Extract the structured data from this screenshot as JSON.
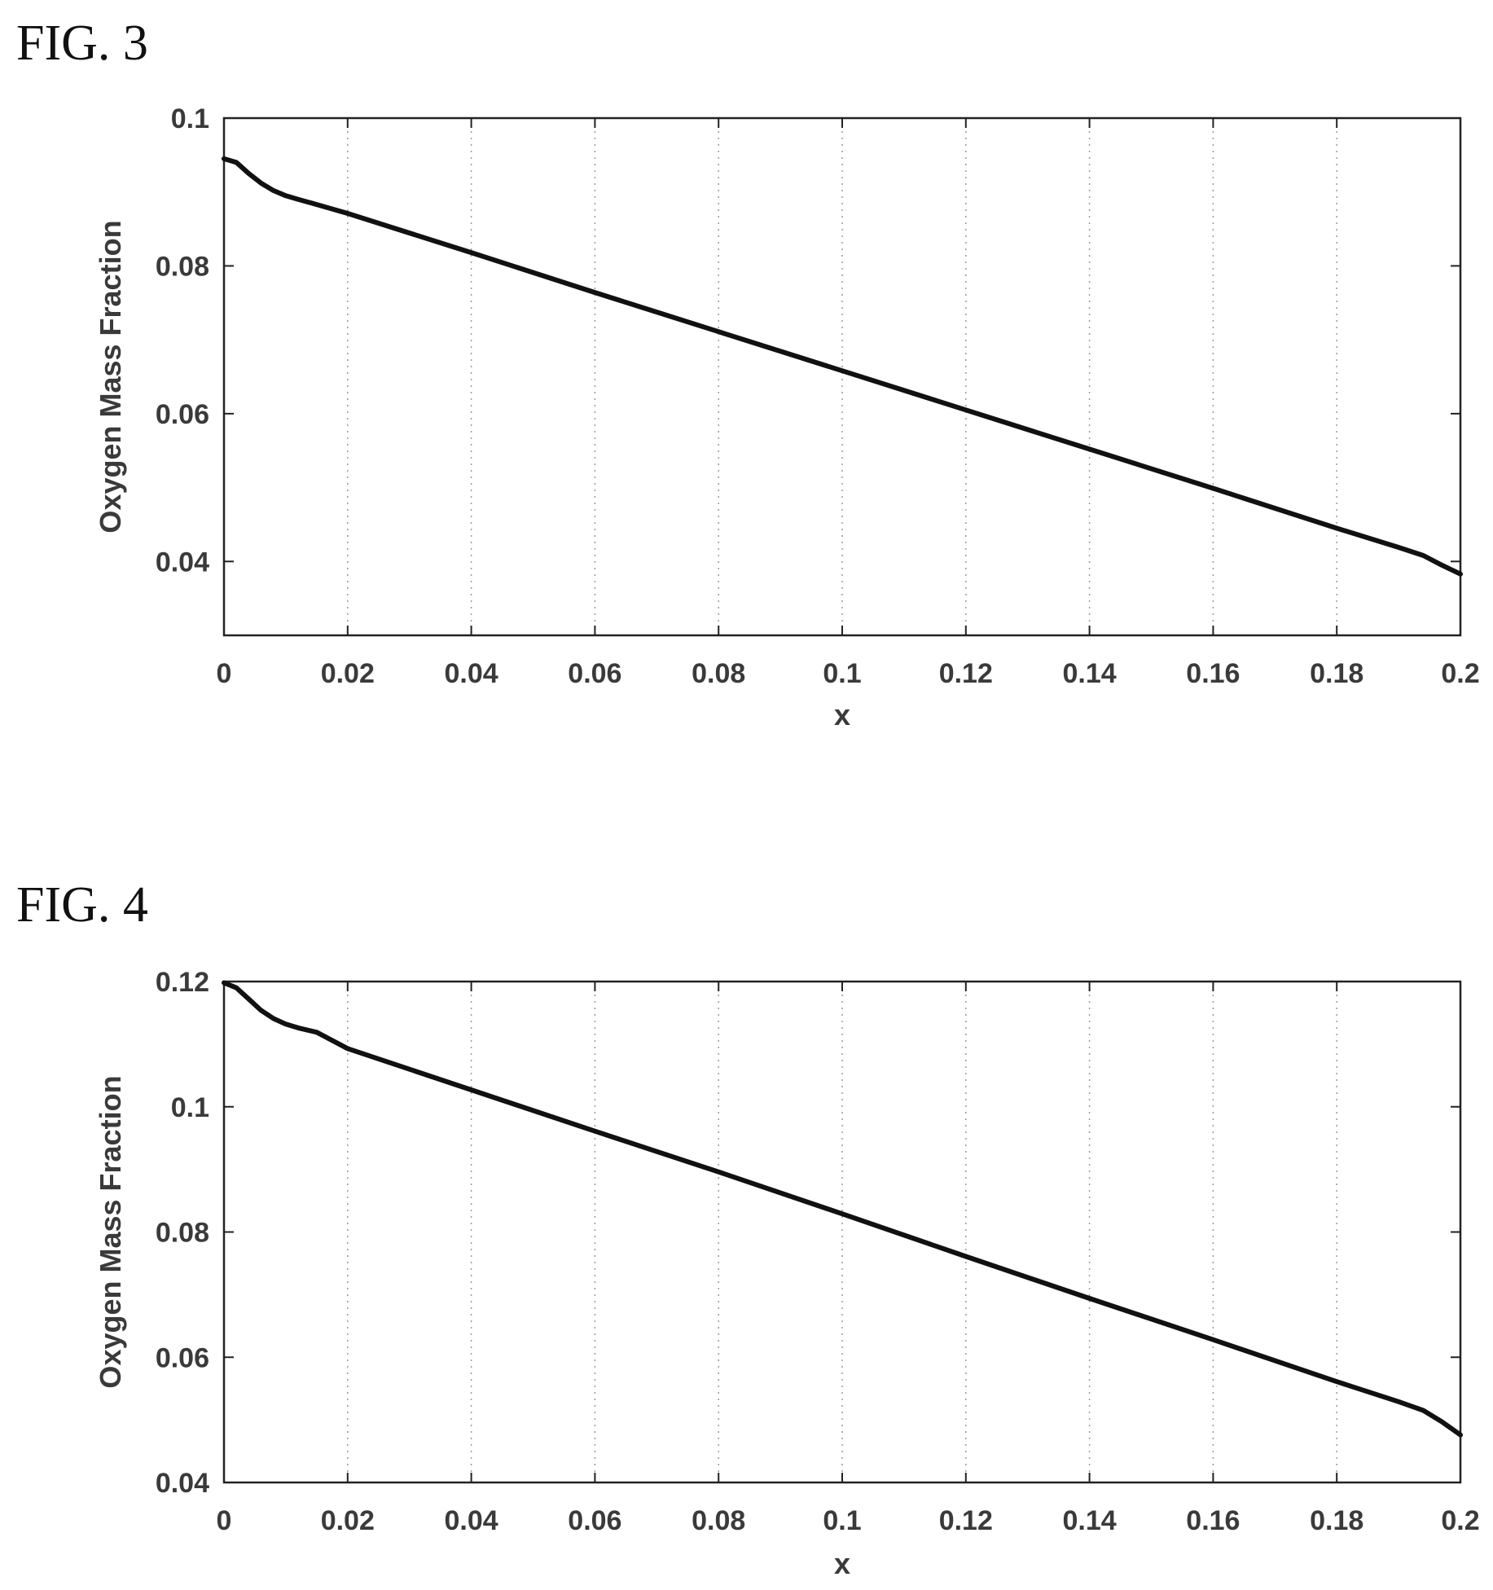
{
  "figures": [
    {
      "label": "FIG. 3"
    },
    {
      "label": "FIG. 4"
    }
  ],
  "chart_data": [
    {
      "type": "line",
      "title": "",
      "xlabel": "x",
      "ylabel": "Oxygen Mass Fraction",
      "xlim": [
        0,
        0.2
      ],
      "ylim": [
        0.03,
        0.1
      ],
      "xticks": [
        "0",
        "0.02",
        "0.04",
        "0.06",
        "0.08",
        "0.1",
        "0.12",
        "0.14",
        "0.16",
        "0.18",
        "0.2"
      ],
      "yticks": [
        "0.04",
        "0.06",
        "0.08",
        "0.1"
      ],
      "ytick_values": [
        0.04,
        0.06,
        0.08,
        0.1
      ],
      "grid": "vertical dotted",
      "line_color": "#111111",
      "series": [
        {
          "x": [
            0,
            0.002,
            0.004,
            0.006,
            0.008,
            0.01,
            0.012,
            0.015,
            0.02,
            0.04,
            0.06,
            0.08,
            0.1,
            0.12,
            0.14,
            0.16,
            0.18,
            0.19,
            0.194,
            0.197,
            0.2
          ],
          "y": [
            0.0945,
            0.094,
            0.0925,
            0.0912,
            0.0902,
            0.0895,
            0.089,
            0.0883,
            0.0871,
            0.0818,
            0.0764,
            0.0711,
            0.0658,
            0.0605,
            0.0552,
            0.0499,
            0.0445,
            0.0419,
            0.0408,
            0.0395,
            0.0383
          ]
        }
      ]
    },
    {
      "type": "line",
      "title": "",
      "xlabel": "x",
      "ylabel": "Oxygen Mass Fraction",
      "xlim": [
        0,
        0.2
      ],
      "ylim": [
        0.04,
        0.12
      ],
      "xticks": [
        "0",
        "0.02",
        "0.04",
        "0.06",
        "0.08",
        "0.1",
        "0.12",
        "0.14",
        "0.16",
        "0.18",
        "0.2"
      ],
      "yticks": [
        "0.04",
        "0.06",
        "0.08",
        "0.1",
        "0.12"
      ],
      "ytick_values": [
        0.04,
        0.06,
        0.08,
        0.1,
        0.12
      ],
      "grid": "vertical dotted",
      "line_color": "#111111",
      "series": [
        {
          "x": [
            0,
            0.002,
            0.004,
            0.006,
            0.008,
            0.01,
            0.012,
            0.015,
            0.02,
            0.04,
            0.06,
            0.08,
            0.1,
            0.12,
            0.14,
            0.16,
            0.18,
            0.19,
            0.194,
            0.197,
            0.2
          ],
          "y": [
            0.1198,
            0.119,
            0.1172,
            0.1154,
            0.1141,
            0.1132,
            0.1126,
            0.1119,
            0.1093,
            0.1027,
            0.0961,
            0.0896,
            0.0829,
            0.0761,
            0.0694,
            0.0628,
            0.0561,
            0.0529,
            0.0515,
            0.0497,
            0.0476
          ]
        }
      ]
    }
  ]
}
